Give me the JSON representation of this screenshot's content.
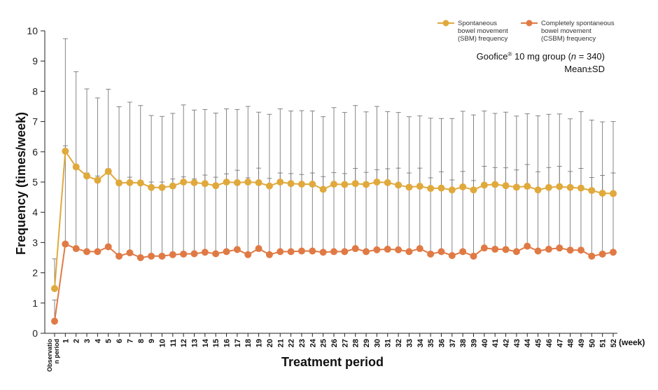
{
  "chart_data": {
    "type": "line",
    "xlabel": "Treatment period",
    "ylabel": "Frequency (times/week)",
    "x_unit": "(week)",
    "ylim": [
      0,
      10
    ],
    "yticks": [
      "0",
      "1",
      "2",
      "3",
      "4",
      "5",
      "6",
      "7",
      "8",
      "9",
      "10"
    ],
    "grid": false,
    "categories": [
      "Observation period",
      "1",
      "2",
      "3",
      "4",
      "5",
      "6",
      "7",
      "8",
      "9",
      "10",
      "11",
      "12",
      "13",
      "14",
      "15",
      "16",
      "17",
      "18",
      "19",
      "20",
      "21",
      "22",
      "23",
      "24",
      "25",
      "26",
      "27",
      "28",
      "29",
      "30",
      "31",
      "32",
      "33",
      "34",
      "35",
      "36",
      "37",
      "38",
      "39",
      "40",
      "41",
      "42",
      "43",
      "44",
      "45",
      "46",
      "47",
      "48",
      "49",
      "50",
      "51",
      "52"
    ],
    "observation_label_lines": [
      "Observatio",
      "n period"
    ],
    "annotation": {
      "line1_pre": "Goofice",
      "line1_sup": "®",
      "line1_mid": " 10 mg group (",
      "line1_n": "n",
      "line1_post": " = 340)",
      "line2": "Mean±SD"
    },
    "series": [
      {
        "name": "SBM",
        "legend_lines": [
          "Spontaneous",
          "bowel movement",
          "(SBM) frequency"
        ],
        "color": "#E0A93C",
        "values": [
          1.48,
          6.02,
          5.5,
          5.2,
          5.06,
          5.35,
          4.97,
          4.98,
          4.97,
          4.82,
          4.82,
          4.87,
          5.0,
          4.98,
          4.95,
          4.88,
          5.0,
          4.98,
          5.0,
          4.98,
          4.87,
          5.0,
          4.95,
          4.93,
          4.93,
          4.76,
          4.93,
          4.92,
          4.95,
          4.92,
          5.0,
          4.98,
          4.9,
          4.83,
          4.86,
          4.79,
          4.8,
          4.74,
          4.84,
          4.74,
          4.9,
          4.92,
          4.88,
          4.83,
          4.86,
          4.74,
          4.82,
          4.85,
          4.82,
          4.8,
          4.72,
          4.63,
          4.62
        ],
        "sd": [
          0.98,
          3.72,
          3.15,
          2.88,
          2.72,
          2.72,
          2.52,
          2.66,
          2.56,
          2.38,
          2.35,
          2.4,
          2.55,
          2.4,
          2.45,
          2.4,
          2.42,
          2.42,
          2.5,
          2.33,
          2.37,
          2.42,
          2.4,
          2.43,
          2.42,
          2.4,
          2.53,
          2.38,
          2.58,
          2.4,
          2.5,
          2.35,
          2.4,
          2.33,
          2.33,
          2.32,
          2.3,
          2.36,
          2.5,
          2.48,
          2.45,
          2.35,
          2.43,
          2.35,
          2.4,
          2.45,
          2.42,
          2.4,
          2.27,
          2.53,
          2.33,
          2.36,
          2.38
        ]
      },
      {
        "name": "CSBM",
        "legend_lines": [
          "Completely spontaneous",
          "bowel movement",
          "(CSBM) frequency"
        ],
        "color": "#E07A45",
        "values": [
          0.4,
          2.95,
          2.8,
          2.7,
          2.7,
          2.86,
          2.55,
          2.66,
          2.5,
          2.55,
          2.55,
          2.6,
          2.62,
          2.63,
          2.68,
          2.63,
          2.7,
          2.77,
          2.6,
          2.8,
          2.6,
          2.7,
          2.7,
          2.72,
          2.72,
          2.68,
          2.7,
          2.7,
          2.8,
          2.7,
          2.76,
          2.78,
          2.76,
          2.7,
          2.8,
          2.62,
          2.7,
          2.57,
          2.7,
          2.55,
          2.82,
          2.78,
          2.77,
          2.7,
          2.88,
          2.72,
          2.78,
          2.82,
          2.75,
          2.75,
          2.55,
          2.62,
          2.68
        ],
        "sd": [
          0.7,
          3.25,
          2.7,
          2.6,
          2.5,
          2.58,
          2.45,
          2.5,
          2.45,
          2.45,
          2.45,
          2.5,
          2.55,
          2.47,
          2.55,
          2.53,
          2.57,
          2.62,
          2.54,
          2.66,
          2.52,
          2.6,
          2.58,
          2.53,
          2.58,
          2.5,
          2.61,
          2.58,
          2.65,
          2.62,
          2.65,
          2.66,
          2.7,
          2.6,
          2.66,
          2.52,
          2.64,
          2.5,
          2.65,
          2.5,
          2.7,
          2.7,
          2.7,
          2.7,
          2.7,
          2.62,
          2.7,
          2.7,
          2.6,
          2.7,
          2.6,
          2.6,
          2.62
        ]
      }
    ]
  }
}
